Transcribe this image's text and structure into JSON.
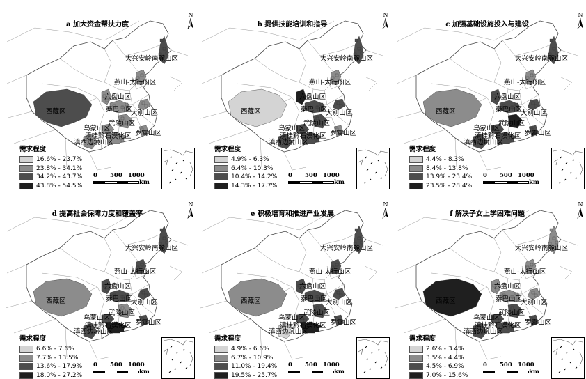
{
  "legend_title": "需求程度",
  "scale": {
    "zero": "0",
    "mid": "500",
    "max": "1000",
    "unit": "km"
  },
  "north_label": "N",
  "region_labels": {
    "daxinganling": "大兴安岭南麓山区",
    "yanshan": "燕山-太行山区",
    "liupanshan": "六盘山区",
    "qinba": "秦巴山区",
    "dabie": "大别山区",
    "wuling": "武陵山区",
    "wumeng": "乌蒙山区",
    "dianguiqian": "滇桂黔石漠化区",
    "luoxiao": "罗霄山区",
    "dianxi": "滇西边境山区",
    "xizang": "西藏区"
  },
  "colors": {
    "c1": "#d4d4d4",
    "c2": "#8c8c8c",
    "c3": "#4d4d4d",
    "c4": "#1f1f1f"
  },
  "panels": [
    {
      "title": "a 加大资金帮扶力度",
      "legend": [
        "16.6% - 23.7%",
        "23.8% - 34.1%",
        "34.2% - 43.7%",
        "43.8% - 54.5%"
      ],
      "fills": {
        "xizang": 3,
        "daxinganling": 3,
        "yanshan": 2,
        "liupanshan": 2,
        "qinba": 2,
        "dabie": 2,
        "wuling": 2,
        "wumeng": 2,
        "dianguiqian": 2,
        "luoxiao": 2,
        "dianxi": 2
      }
    },
    {
      "title": "b 提供技能培训和指导",
      "legend": [
        "4.9% - 6.3%",
        "6.4% - 10.3%",
        "10.4% - 14.2%",
        "14.3% - 17.7%"
      ],
      "fills": {
        "xizang": 1,
        "daxinganling": 3,
        "yanshan": 2,
        "liupanshan": 4,
        "qinba": 3,
        "dabie": 3,
        "wuling": 3,
        "wumeng": 3,
        "dianguiqian": 3,
        "luoxiao": 2,
        "dianxi": 3
      }
    },
    {
      "title": "c 加强基础设施投入与建设",
      "legend": [
        "4.4% - 8.3%",
        "8.4% - 13.8%",
        "13.9% - 23.4%",
        "23.5% - 28.4%"
      ],
      "fills": {
        "xizang": 2,
        "daxinganling": 3,
        "yanshan": 2,
        "liupanshan": 3,
        "qinba": 3,
        "dabie": 3,
        "wuling": 4,
        "wumeng": 3,
        "dianguiqian": 3,
        "luoxiao": 3,
        "dianxi": 3
      }
    },
    {
      "title": "d 提高社会保障力度和覆盖率",
      "legend": [
        "6.6% - 7.6%",
        "7.7% - 13.5%",
        "13.6% - 17.9%",
        "18.0% - 27.2%"
      ],
      "fills": {
        "xizang": 2,
        "daxinganling": 3,
        "yanshan": 3,
        "liupanshan": 3,
        "qinba": 3,
        "dabie": 3,
        "wuling": 2,
        "wumeng": 3,
        "dianguiqian": 4,
        "luoxiao": 3,
        "dianxi": 3
      }
    },
    {
      "title": "e 积极培育和推进产业发展",
      "legend": [
        "4.9% - 6.6%",
        "6.7% - 10.9%",
        "11.0% - 19.4%",
        "19.5% - 25.7%"
      ],
      "fills": {
        "xizang": 2,
        "daxinganling": 3,
        "yanshan": 3,
        "liupanshan": 3,
        "qinba": 3,
        "dabie": 3,
        "wuling": 3,
        "wumeng": 3,
        "dianguiqian": 4,
        "luoxiao": 3,
        "dianxi": 1
      }
    },
    {
      "title": "f 解决子女上学困难问题",
      "legend": [
        "2.6% - 3.4%",
        "3.5% - 4.4%",
        "4.5% - 6.9%",
        "7.0% - 15.6%"
      ],
      "fills": {
        "xizang": 4,
        "daxinganling": 2,
        "yanshan": 2,
        "liupanshan": 2,
        "qinba": 2,
        "dabie": 2,
        "wuling": 3,
        "wumeng": 3,
        "dianguiqian": 3,
        "luoxiao": 3,
        "dianxi": 3
      }
    }
  ]
}
